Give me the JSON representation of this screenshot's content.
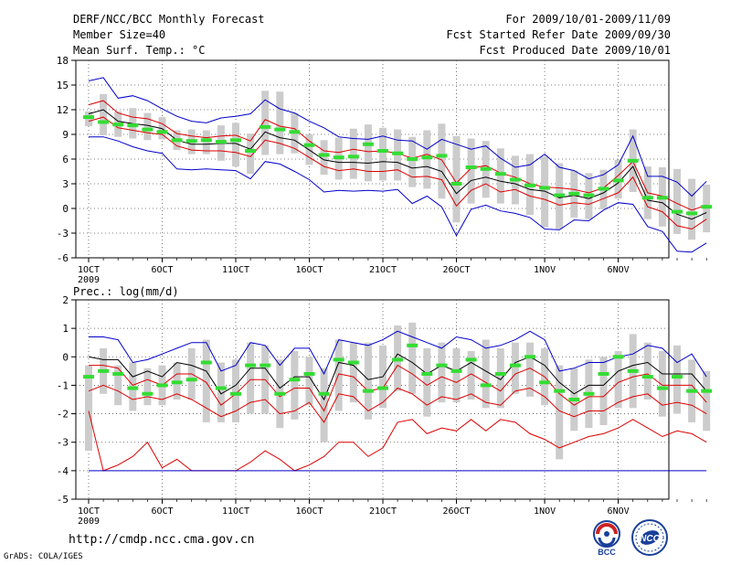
{
  "header": {
    "title": "DERF/NCC/BCC Monthly Forecast",
    "member_size": "Member Size=40",
    "variable": "Mean Surf. Temp.: °C",
    "period": "For 2009/10/01-2009/11/09",
    "fcst_started": "Fcst Started Refer Date 2009/09/30",
    "fcst_produced": "Fcst Produced Date 2009/10/01"
  },
  "footer": {
    "url": "http://cmdp.ncc.cma.gov.cn",
    "credit": "GrADS: COLA/IGES",
    "logo_bcc": "BCC",
    "logo_ncc": "NCC"
  },
  "colors": {
    "box": "#cccccc",
    "mean": "#000000",
    "quartile": "#dd0000",
    "extreme": "#0000cc",
    "obs": "#33dd33",
    "grid": "#555555"
  },
  "chart_data": [
    {
      "type": "box-line",
      "title": "Mean Surf. Temp.: °C",
      "ylabel": "°C",
      "ylim": [
        -6,
        18
      ],
      "yticks": [
        18,
        15,
        12,
        9,
        6,
        3,
        0,
        -3,
        -6
      ],
      "x_start_day": 1,
      "xticks": [
        {
          "day": 1,
          "label": "1OCT",
          "sub": "2009"
        },
        {
          "day": 6,
          "label": "6OCT"
        },
        {
          "day": 11,
          "label": "11OCT"
        },
        {
          "day": 16,
          "label": "16OCT"
        },
        {
          "day": 21,
          "label": "21OCT"
        },
        {
          "day": 26,
          "label": "26OCT"
        },
        {
          "day": 32,
          "label": "1NOV"
        },
        {
          "day": 37,
          "label": "6NOV"
        }
      ],
      "series": [
        {
          "name": "max",
          "role": "extreme",
          "values": [
            15.5,
            15.9,
            13.4,
            13.7,
            13.1,
            12.1,
            11.2,
            10.6,
            10.4,
            11.0,
            11.2,
            11.5,
            13.2,
            12.1,
            11.6,
            10.6,
            9.8,
            8.7,
            8.5,
            8.4,
            8.8,
            8.3,
            8.2,
            7.2,
            8.4,
            7.8,
            7.2,
            7.6,
            6.1,
            5.0,
            5.3,
            6.6,
            5.0,
            4.6,
            3.6,
            4.1,
            5.3,
            8.8,
            3.9,
            3.9,
            3.2,
            1.5,
            3.3
          ]
        },
        {
          "name": "upper quartile",
          "role": "quartile",
          "values": [
            12.6,
            13.1,
            11.6,
            11.1,
            10.9,
            10.3,
            9.1,
            8.8,
            8.6,
            8.8,
            8.9,
            8.2,
            10.8,
            10.0,
            9.7,
            8.2,
            7.0,
            6.8,
            7.2,
            6.9,
            7.0,
            6.7,
            6.1,
            6.6,
            5.9,
            3.1,
            4.9,
            5.2,
            4.3,
            3.8,
            3.0,
            2.6,
            2.5,
            2.3,
            1.9,
            2.5,
            4.0,
            5.7,
            1.9,
            1.5,
            0.6,
            -0.2,
            0.4
          ]
        },
        {
          "name": "mean",
          "role": "mean",
          "values": [
            11.5,
            12.0,
            10.6,
            10.3,
            10.1,
            9.7,
            8.3,
            7.8,
            7.8,
            7.9,
            7.9,
            7.2,
            9.3,
            8.6,
            8.3,
            7.1,
            5.9,
            5.6,
            5.6,
            5.5,
            5.7,
            5.6,
            4.9,
            5.1,
            4.5,
            1.8,
            3.4,
            3.8,
            3.3,
            3.0,
            2.3,
            2.1,
            1.3,
            1.6,
            1.2,
            1.9,
            3.1,
            5.1,
            1.0,
            0.7,
            -0.7,
            -1.3,
            -0.5
          ]
        },
        {
          "name": "lower quartile",
          "role": "quartile",
          "values": [
            10.6,
            11.1,
            9.8,
            9.5,
            9.2,
            9.0,
            7.6,
            7.1,
            7.0,
            7.0,
            6.8,
            6.3,
            8.3,
            7.9,
            7.3,
            6.2,
            5.1,
            4.6,
            4.8,
            4.5,
            4.5,
            4.7,
            3.8,
            3.9,
            3.5,
            0.3,
            2.2,
            3.0,
            2.0,
            2.3,
            1.5,
            1.1,
            0.4,
            0.7,
            0.5,
            1.2,
            1.9,
            3.8,
            0.2,
            -0.4,
            -2.1,
            -2.5,
            -1.3
          ]
        },
        {
          "name": "min",
          "role": "extreme",
          "values": [
            8.7,
            8.7,
            8.2,
            7.5,
            7.0,
            6.7,
            4.8,
            4.7,
            4.8,
            4.7,
            4.6,
            3.6,
            5.7,
            5.4,
            4.5,
            3.5,
            2.0,
            2.2,
            2.1,
            2.2,
            2.1,
            2.3,
            0.6,
            1.5,
            0.2,
            -3.3,
            -0.1,
            0.4,
            -0.3,
            -0.6,
            -1.1,
            -2.5,
            -2.6,
            -1.4,
            -1.5,
            -0.2,
            0.7,
            0.5,
            -2.2,
            -2.8,
            -5.2,
            -5.3,
            -4.2
          ]
        },
        {
          "name": "observed",
          "role": "obs",
          "values": [
            11.1,
            10.5,
            10.2,
            10.1,
            9.6,
            9.3,
            8.3,
            8.2,
            8.3,
            8.1,
            8.3,
            7.0,
            9.9,
            9.6,
            9.3,
            7.7,
            6.5,
            6.2,
            6.3,
            7.8,
            7.0,
            6.7,
            6.0,
            6.2,
            6.4,
            3.0,
            5.0,
            4.8,
            4.2,
            3.5,
            2.8,
            2.5,
            1.6,
            1.8,
            1.6,
            2.4,
            3.4,
            5.8,
            1.3,
            1.3,
            -0.4,
            -0.6,
            0.2
          ]
        },
        {
          "name": "box high",
          "role": "box",
          "values": [
            11.8,
            13.9,
            11.8,
            12.2,
            11.6,
            11.1,
            9.5,
            9.6,
            9.5,
            10.1,
            10.4,
            9.1,
            14.3,
            14.2,
            11.6,
            9.0,
            8.3,
            8.6,
            9.7,
            10.2,
            9.8,
            9.6,
            8.7,
            9.5,
            10.3,
            8.8,
            8.5,
            8.2,
            7.3,
            6.4,
            6.6,
            6.3,
            5.5,
            4.6,
            4.3,
            4.7,
            5.9,
            9.6,
            5.1,
            5.0,
            4.8,
            3.6,
            2.9
          ]
        },
        {
          "name": "box low",
          "role": "box",
          "values": [
            10.0,
            8.9,
            8.7,
            8.5,
            8.3,
            8.4,
            7.1,
            6.6,
            6.6,
            5.8,
            5.1,
            4.2,
            6.5,
            6.6,
            6.7,
            5.3,
            4.1,
            3.5,
            3.6,
            3.3,
            3.4,
            3.4,
            2.6,
            2.4,
            1.2,
            -1.7,
            0.6,
            1.3,
            0.6,
            0.5,
            -0.8,
            -2.3,
            -2.5,
            -1.1,
            -1.3,
            -0.1,
            1.2,
            2.0,
            -1.3,
            -2.2,
            -3.1,
            -3.8,
            -2.9
          ]
        }
      ]
    },
    {
      "type": "box-line",
      "title": "Prec.: log(mm/d)",
      "ylabel": "log(mm/d)",
      "ylim": [
        -5,
        2
      ],
      "yticks": [
        2,
        1,
        0,
        -1,
        -2,
        -3,
        -4,
        -5
      ],
      "x_start_day": 1,
      "xticks": [
        {
          "day": 1,
          "label": "1OCT",
          "sub": "2009"
        },
        {
          "day": 6,
          "label": "6OCT"
        },
        {
          "day": 11,
          "label": "11OCT"
        },
        {
          "day": 16,
          "label": "16OCT"
        },
        {
          "day": 21,
          "label": "21OCT"
        },
        {
          "day": 26,
          "label": "26OCT"
        },
        {
          "day": 32,
          "label": "1NOV"
        },
        {
          "day": 37,
          "label": "6NOV"
        }
      ],
      "series": [
        {
          "name": "max",
          "role": "extreme",
          "values": [
            0.7,
            0.7,
            0.6,
            -0.2,
            -0.1,
            0.1,
            0.3,
            0.5,
            0.5,
            -0.5,
            -0.3,
            0.5,
            0.4,
            -0.3,
            0.3,
            0.3,
            -0.6,
            0.6,
            0.5,
            0.4,
            0.6,
            0.9,
            0.7,
            0.5,
            0.3,
            0.7,
            0.6,
            0.3,
            0.4,
            0.6,
            0.9,
            0.6,
            -0.5,
            -0.4,
            -0.2,
            -0.2,
            0.0,
            0.1,
            0.4,
            0.3,
            -0.2,
            0.1,
            -0.7
          ]
        },
        {
          "name": "mean",
          "role": "mean",
          "values": [
            0.0,
            -0.1,
            -0.1,
            -0.7,
            -0.5,
            -0.7,
            -0.2,
            -0.3,
            -0.5,
            -1.3,
            -1.0,
            -0.4,
            -0.4,
            -1.1,
            -0.7,
            -0.7,
            -1.5,
            -0.2,
            -0.3,
            -0.8,
            -0.7,
            0.1,
            -0.2,
            -0.6,
            -0.3,
            -0.5,
            -0.2,
            -0.5,
            -0.8,
            -0.2,
            0.0,
            -0.3,
            -0.9,
            -1.3,
            -1.0,
            -1.0,
            -0.5,
            -0.3,
            -0.2,
            -0.6,
            -0.6,
            -0.6,
            -1.2
          ]
        },
        {
          "name": "upper quartile",
          "role": "quartile",
          "values": [
            -0.3,
            -0.3,
            -0.4,
            -1.0,
            -0.8,
            -1.0,
            -0.6,
            -0.6,
            -0.9,
            -1.7,
            -1.3,
            -0.8,
            -0.8,
            -1.4,
            -1.1,
            -1.1,
            -1.9,
            -0.6,
            -0.7,
            -1.2,
            -1.1,
            -0.3,
            -0.6,
            -1.0,
            -0.7,
            -0.9,
            -0.6,
            -0.9,
            -1.2,
            -0.6,
            -0.4,
            -0.7,
            -1.3,
            -1.7,
            -1.4,
            -1.4,
            -0.9,
            -0.7,
            -0.6,
            -1.0,
            -1.0,
            -1.0,
            -1.6
          ]
        },
        {
          "name": "lower quartile",
          "role": "quartile",
          "values": [
            -1.2,
            -1.0,
            -1.2,
            -1.5,
            -1.4,
            -1.5,
            -1.3,
            -1.5,
            -1.8,
            -2.1,
            -1.9,
            -1.6,
            -1.5,
            -2.0,
            -1.9,
            -1.6,
            -2.3,
            -1.3,
            -1.4,
            -1.9,
            -1.6,
            -1.1,
            -1.3,
            -1.7,
            -1.4,
            -1.5,
            -1.3,
            -1.6,
            -1.7,
            -1.2,
            -1.1,
            -1.4,
            -1.9,
            -2.1,
            -1.9,
            -1.9,
            -1.6,
            -1.4,
            -1.3,
            -1.7,
            -1.6,
            -1.7,
            -2.0
          ]
        },
        {
          "name": "10th percentile",
          "role": "quartile",
          "values": [
            -1.9,
            -4.0,
            -3.8,
            -3.5,
            -3.0,
            -3.9,
            -3.6,
            -4.0,
            -4.0,
            -4.0,
            -4.0,
            -3.7,
            -3.3,
            -3.6,
            -4.0,
            -3.8,
            -3.5,
            -3.0,
            -3.0,
            -3.5,
            -3.2,
            -2.3,
            -2.2,
            -2.7,
            -2.5,
            -2.6,
            -2.2,
            -2.6,
            -2.2,
            -2.3,
            -2.7,
            -2.9,
            -3.2,
            -3.0,
            -2.8,
            -2.7,
            -2.5,
            -2.2,
            -2.5,
            -2.8,
            -2.6,
            -2.7,
            -3.0
          ]
        },
        {
          "name": "min",
          "role": "extreme",
          "values": [
            -4.0,
            -4.0,
            -4.0,
            -4.0,
            -4.0,
            -4.0,
            -4.0,
            -4.0,
            -4.0,
            -4.0,
            -4.0,
            -4.0,
            -4.0,
            -4.0,
            -4.0,
            -4.0,
            -4.0,
            -4.0,
            -4.0,
            -4.0,
            -4.0,
            -4.0,
            -4.0,
            -4.0,
            -4.0,
            -4.0,
            -4.0,
            -4.0,
            -4.0,
            -4.0,
            -4.0,
            -4.0,
            -4.0,
            -4.0,
            -4.0,
            -4.0,
            -4.0,
            -4.0,
            -4.0,
            -4.0,
            -4.0,
            -4.0,
            -4.0
          ]
        },
        {
          "name": "observed",
          "role": "obs",
          "values": [
            -0.7,
            -0.5,
            -0.6,
            -1.1,
            -1.3,
            -1.0,
            -0.9,
            -0.8,
            -0.2,
            -1.1,
            -1.3,
            -0.3,
            -0.3,
            -1.3,
            -0.8,
            -0.6,
            -1.3,
            -0.1,
            -0.2,
            -1.2,
            -1.1,
            -0.1,
            0.4,
            -0.6,
            -0.3,
            -0.5,
            -0.1,
            -1.0,
            -0.6,
            -0.3,
            0.0,
            -0.9,
            -1.2,
            -1.5,
            -1.3,
            -0.6,
            0.0,
            -0.5,
            -0.7,
            -1.1,
            -0.7,
            -1.2,
            -1.2
          ]
        },
        {
          "name": "box high",
          "role": "box",
          "values": [
            -0.3,
            0.3,
            -0.3,
            -0.2,
            -0.4,
            -0.3,
            -0.2,
            0.3,
            0.6,
            -0.2,
            -0.1,
            0.5,
            0.4,
            -0.1,
            0.2,
            0.0,
            -0.4,
            0.6,
            0.5,
            0.5,
            0.4,
            1.1,
            1.2,
            0.3,
            0.5,
            0.3,
            0.2,
            0.6,
            0.3,
            0.5,
            0.5,
            0.3,
            -0.3,
            -0.4,
            -0.1,
            0.0,
            0.2,
            0.8,
            0.5,
            0.2,
            0.4,
            -0.1,
            -0.5
          ]
        },
        {
          "name": "box low",
          "role": "box",
          "values": [
            -3.3,
            -1.3,
            -1.7,
            -1.9,
            -1.7,
            -1.7,
            -1.5,
            -1.5,
            -2.3,
            -2.3,
            -2.3,
            -2.0,
            -2.0,
            -2.5,
            -2.2,
            -1.7,
            -3.0,
            -1.9,
            -1.6,
            -2.2,
            -1.8,
            -1.2,
            -1.3,
            -2.1,
            -1.6,
            -1.6,
            -1.5,
            -1.8,
            -1.8,
            -1.3,
            -1.4,
            -1.7,
            -3.6,
            -2.6,
            -2.5,
            -2.4,
            -1.8,
            -1.8,
            -1.5,
            -2.1,
            -2.0,
            -2.3,
            -2.6
          ]
        }
      ]
    }
  ]
}
